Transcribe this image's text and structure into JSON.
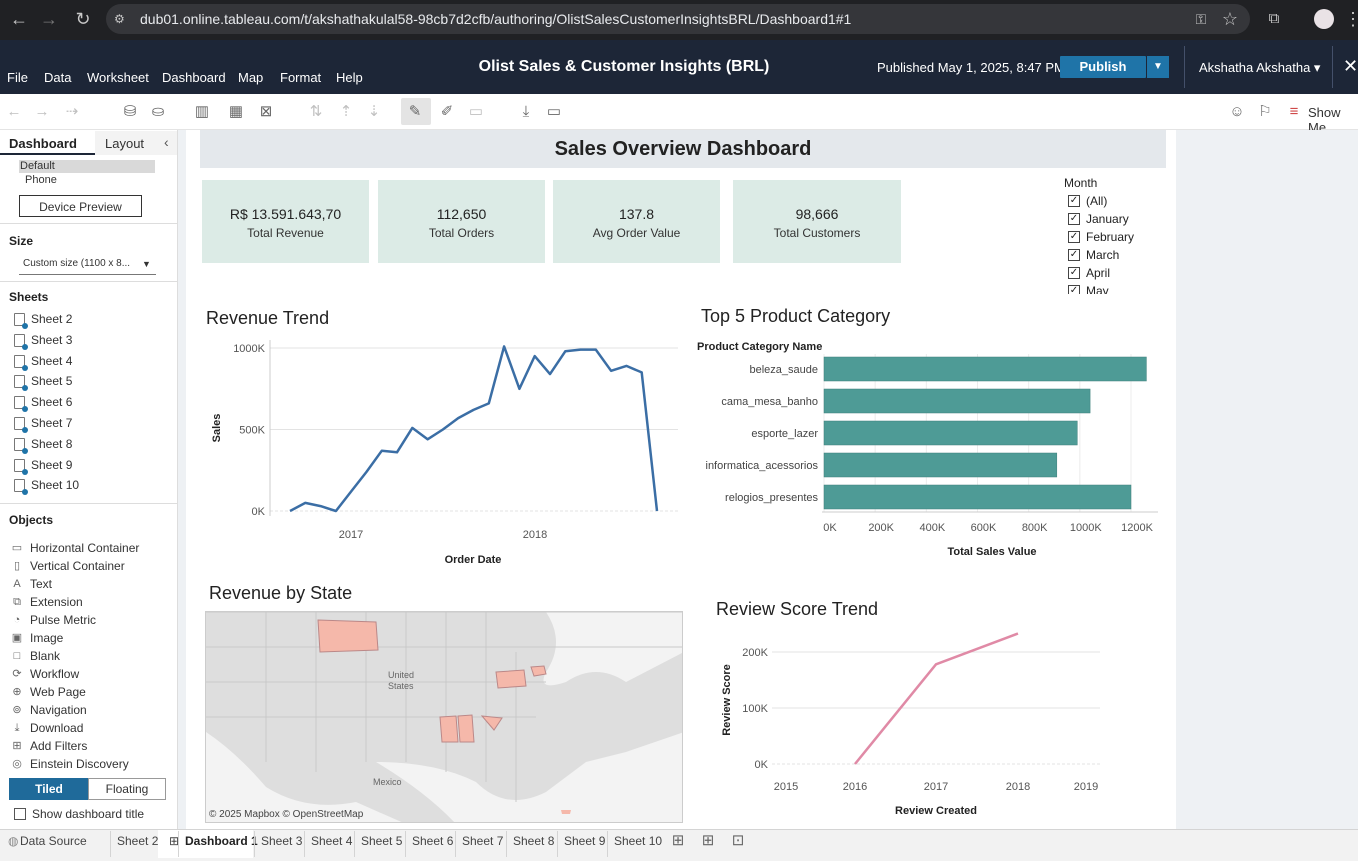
{
  "browser": {
    "url": "dub01.online.tableau.com/t/akshathakulal58-98cb7d2cfb/authoring/OlistSalesCustomerInsightsBRL/Dashboard1#1"
  },
  "menu": [
    "File",
    "Data",
    "Worksheet",
    "Dashboard",
    "Map",
    "Format",
    "Help"
  ],
  "header": {
    "title": "Olist Sales & Customer Insights (BRL)",
    "published": "Published May 1, 2025, 8:47 PM",
    "publish_label": "Publish",
    "user": "Akshatha Akshatha"
  },
  "toolbar": {
    "show_me": "Show Me"
  },
  "left": {
    "tab_dashboard": "Dashboard",
    "tab_layout": "Layout",
    "device_default": "Default",
    "device_phone": "Phone",
    "device_preview": "Device Preview",
    "size_header": "Size",
    "size_value": "Custom size (1100 x 8...",
    "sheets_header": "Sheets",
    "sheets": [
      "Sheet 2",
      "Sheet 3",
      "Sheet 4",
      "Sheet 5",
      "Sheet 6",
      "Sheet 7",
      "Sheet 8",
      "Sheet 9",
      "Sheet 10"
    ],
    "objects_header": "Objects",
    "objects": [
      "Horizontal Container",
      "Vertical Container",
      "Text",
      "Extension",
      "Pulse Metric",
      "Image",
      "Blank",
      "Workflow",
      "Web Page",
      "Navigation",
      "Download",
      "Add Filters",
      "Einstein Discovery"
    ],
    "tiled": "Tiled",
    "floating": "Floating",
    "show_title": "Show dashboard title"
  },
  "dashboard": {
    "title": "Sales Overview Dashboard",
    "kpis": [
      {
        "value": "R$ 13.591.643,70",
        "label": "Total Revenue"
      },
      {
        "value": "112,650",
        "label": "Total Orders"
      },
      {
        "value": "137.8",
        "label": "Avg Order Value"
      },
      {
        "value": "98,666",
        "label": "Total Customers"
      }
    ],
    "filter": {
      "title": "Month",
      "items": [
        "(All)",
        "January",
        "February",
        "March",
        "April",
        "May"
      ]
    },
    "revenue_trend": {
      "title": "Revenue Trend"
    },
    "top5": {
      "title": "Top 5 Product Category"
    },
    "map": {
      "title": "Revenue by State",
      "label_us1": "United",
      "label_us2": "States",
      "label_mx": "Mexico",
      "attribution": "© 2025 Mapbox  © OpenStreetMap"
    },
    "review": {
      "title": "Review Score Trend"
    }
  },
  "chart_data": [
    {
      "type": "line",
      "title": "Revenue Trend",
      "xlabel": "Order Date",
      "ylabel": "Sales",
      "x_ticks": [
        "2017",
        "2018"
      ],
      "y_ticks": [
        "0K",
        "500K",
        "1000K"
      ],
      "ylim": [
        0,
        1000000
      ],
      "color": "#3b6ea5",
      "values": [
        0,
        50000,
        30000,
        0,
        120000,
        240000,
        370000,
        360000,
        510000,
        440000,
        500000,
        570000,
        620000,
        660000,
        1010000,
        750000,
        950000,
        840000,
        980000,
        990000,
        990000,
        860000,
        890000,
        850000,
        0
      ]
    },
    {
      "type": "bar",
      "title": "Top 5 Product Category",
      "category_header": "Product Category Name",
      "xlabel": "Total Sales Value",
      "categories": [
        "beleza_saude",
        "cama_mesa_banho",
        "esporte_lazer",
        "informatica_acessorios",
        "relogios_presentes"
      ],
      "values": [
        1260000,
        1040000,
        990000,
        910000,
        1200000
      ],
      "x_ticks": [
        "0K",
        "200K",
        "400K",
        "600K",
        "800K",
        "1000K",
        "1200K"
      ],
      "xlim": [
        0,
        1200000
      ],
      "color": "#4e9b96"
    },
    {
      "type": "line",
      "title": "Review Score Trend",
      "xlabel": "Review Created",
      "ylabel": "Review Score",
      "x": [
        "2016",
        "2017",
        "2018"
      ],
      "values": [
        0,
        178000,
        233000
      ],
      "x_ticks": [
        "2015",
        "2016",
        "2017",
        "2018",
        "2019"
      ],
      "y_ticks": [
        "0K",
        "100K",
        "200K"
      ],
      "ylim": [
        0,
        200000
      ],
      "color": "#e08aa6"
    }
  ],
  "tabs": [
    "Data Source",
    "Sheet 2",
    "Dashboard 1",
    "Sheet 3",
    "Sheet 4",
    "Sheet 5",
    "Sheet 6",
    "Sheet 7",
    "Sheet 8",
    "Sheet 9",
    "Sheet 10"
  ]
}
